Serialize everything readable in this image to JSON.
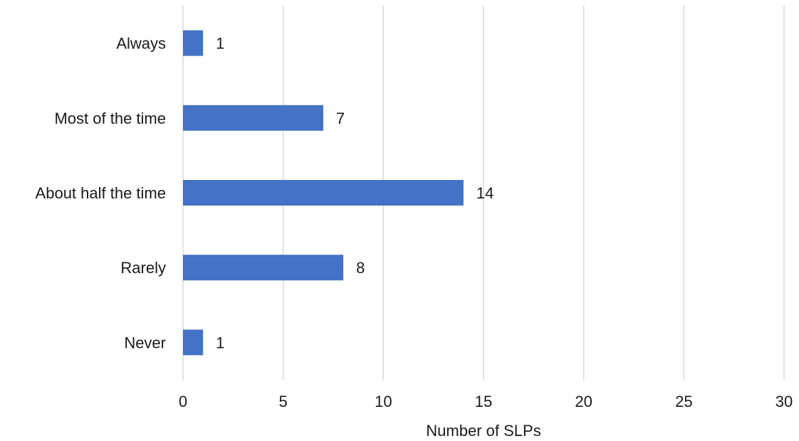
{
  "chart_data": {
    "type": "bar",
    "orientation": "horizontal",
    "categories": [
      "Always",
      "Most of the time",
      "About half the time",
      "Rarely",
      "Never"
    ],
    "values": [
      1,
      7,
      14,
      8,
      1
    ],
    "xlabel": "Number of SLPs",
    "ylabel": "",
    "xlim": [
      0,
      30
    ],
    "xticks": [
      0,
      5,
      10,
      15,
      20,
      25,
      30
    ],
    "grid": "vertical",
    "legend": "none",
    "bar_color": "#4472c4"
  }
}
